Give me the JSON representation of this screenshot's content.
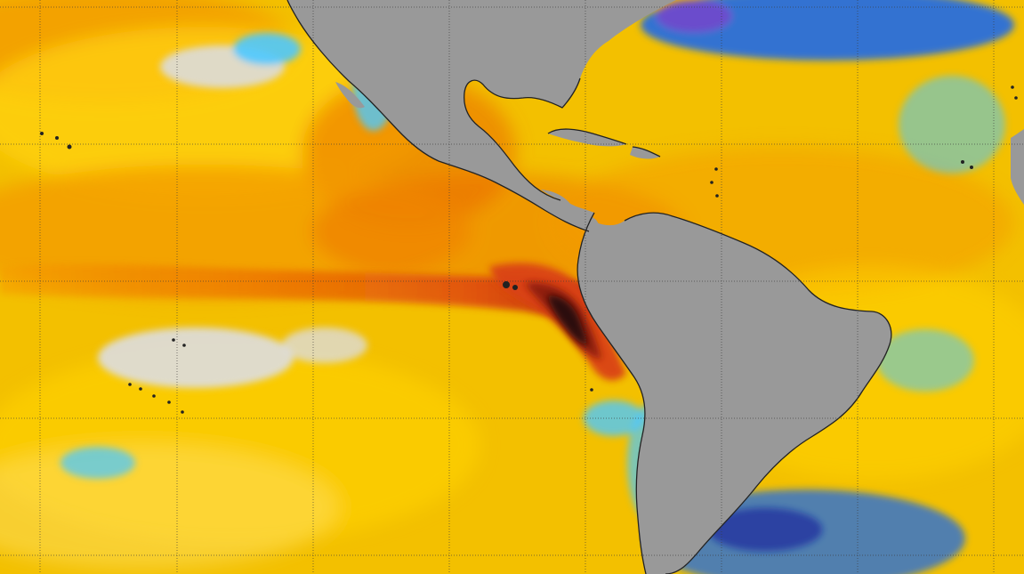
{
  "map": {
    "palette": {
      "ocean_base": "#f3c000",
      "warm_yellow": "#ffd20a",
      "light_yellow": "#ffe36b",
      "orange": "#f39a00",
      "deep_orange": "#ea6a00",
      "red_orange": "#d94312",
      "dark_red": "#8d1c10",
      "near_black_red": "#2b0b08",
      "neutral_gray": "#dcdcdc",
      "cyan": "#4dc8ff",
      "blue": "#1d69e8",
      "dark_blue": "#1f2f9e",
      "purple": "#6f4acb",
      "land_gray": "#999999",
      "coast_stroke": "#222222",
      "grid_line": "#3b3b3b"
    },
    "layers": {
      "graticule": true,
      "coastlines": true,
      "land_mask": true
    },
    "legend": false,
    "labels": false
  }
}
